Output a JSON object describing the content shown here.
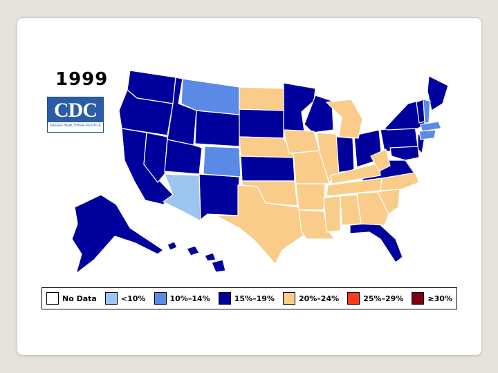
{
  "year": "1999",
  "logo": {
    "letters": "CDC",
    "tagline": "SAFER·HEALTHIER·PEOPLE"
  },
  "colors": {
    "no_data": "#ffffff",
    "lt10": "#9cc6f0",
    "c10_14": "#5b8ae6",
    "c15_19": "#00009c",
    "c20_24": "#f9cc8a",
    "c25_29": "#ff3a1a",
    "ge30": "#b3001a"
  },
  "legend": [
    {
      "label": "No Data",
      "color": "#ffffff"
    },
    {
      "label": "<10%",
      "color": "#9cc6f0"
    },
    {
      "label": "10%–14%",
      "color": "#5b8ae6"
    },
    {
      "label": "15%–19%",
      "color": "#00009c"
    },
    {
      "label": "20%–24%",
      "color": "#f9cc8a"
    },
    {
      "label": "25%–29%",
      "color": "#ff3a1a"
    },
    {
      "label": "≥30%",
      "color": "#b3001a"
    }
  ]
}
